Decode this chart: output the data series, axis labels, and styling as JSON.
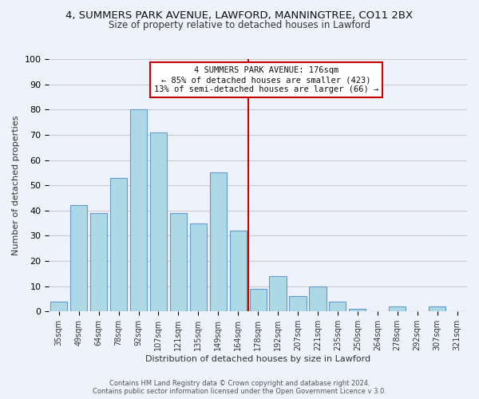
{
  "title": "4, SUMMERS PARK AVENUE, LAWFORD, MANNINGTREE, CO11 2BX",
  "subtitle": "Size of property relative to detached houses in Lawford",
  "xlabel": "Distribution of detached houses by size in Lawford",
  "ylabel": "Number of detached properties",
  "footer_line1": "Contains HM Land Registry data © Crown copyright and database right 2024.",
  "footer_line2": "Contains public sector information licensed under the Open Government Licence v 3.0.",
  "bar_labels": [
    "35sqm",
    "49sqm",
    "64sqm",
    "78sqm",
    "92sqm",
    "107sqm",
    "121sqm",
    "135sqm",
    "149sqm",
    "164sqm",
    "178sqm",
    "192sqm",
    "207sqm",
    "221sqm",
    "235sqm",
    "250sqm",
    "264sqm",
    "278sqm",
    "292sqm",
    "307sqm",
    "321sqm"
  ],
  "bar_values": [
    4,
    42,
    39,
    53,
    80,
    71,
    39,
    35,
    55,
    32,
    9,
    14,
    6,
    10,
    4,
    1,
    0,
    2,
    0,
    2,
    0
  ],
  "bar_color": "#add8e6",
  "bar_edge_color": "#6699cc",
  "vline_x": 9.5,
  "vline_color": "#cc0000",
  "ylim": [
    0,
    100
  ],
  "yticks": [
    0,
    10,
    20,
    30,
    40,
    50,
    60,
    70,
    80,
    90,
    100
  ],
  "annotation_title": "4 SUMMERS PARK AVENUE: 176sqm",
  "annotation_line1": "← 85% of detached houses are smaller (423)",
  "annotation_line2": "13% of semi-detached houses are larger (66) →",
  "annotation_box_color": "#ffffff",
  "annotation_border_color": "#cc0000",
  "grid_color": "#cccccc",
  "background_color": "#eef2fb"
}
